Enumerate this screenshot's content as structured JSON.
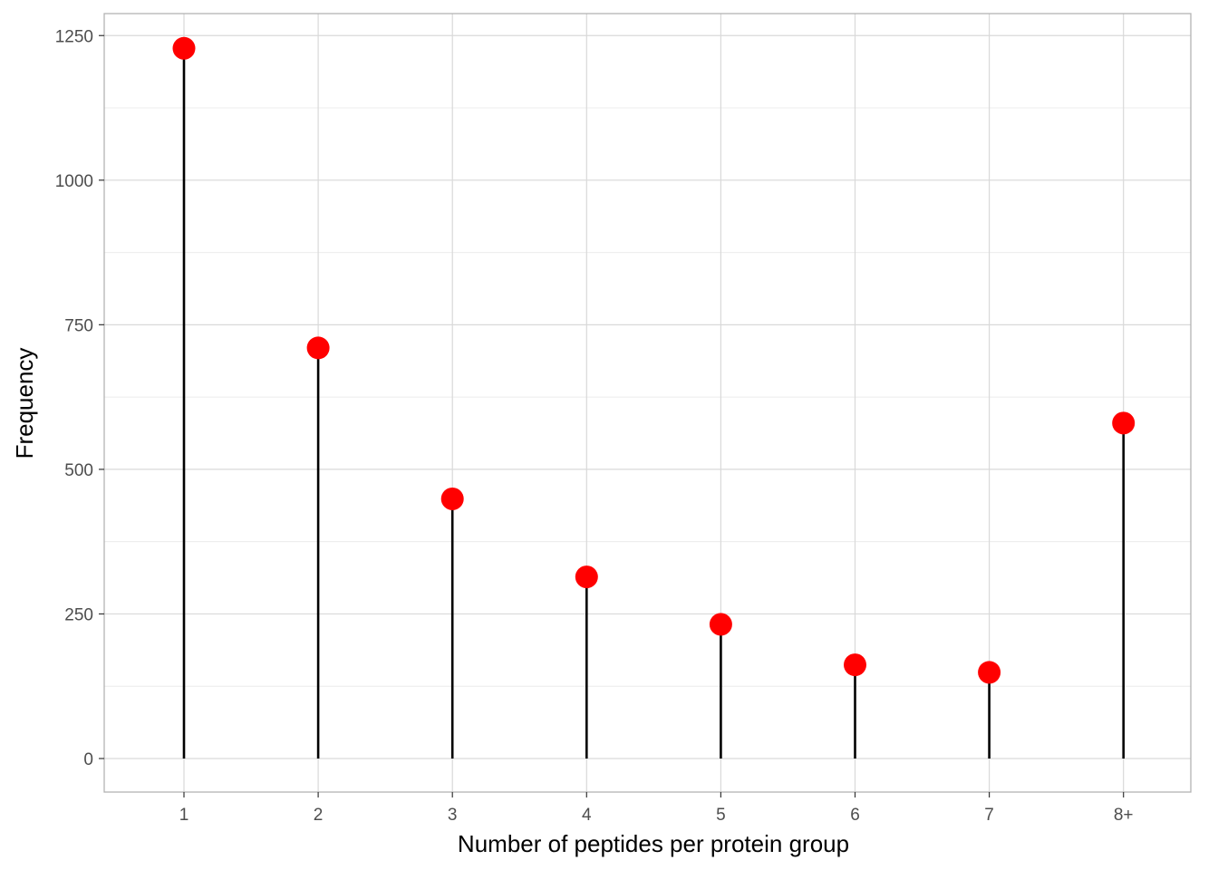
{
  "chart_data": {
    "type": "lollipop",
    "categories": [
      "1",
      "2",
      "3",
      "4",
      "5",
      "6",
      "7",
      "8+"
    ],
    "values": [
      1228,
      710,
      449,
      314,
      232,
      162,
      149,
      580
    ],
    "xlabel": "Number of peptides per protein group",
    "ylabel": "Frequency",
    "ylim": [
      -58,
      1288
    ],
    "yticks": [
      0,
      250,
      500,
      750,
      1000,
      1250
    ],
    "yticklabels": [
      "0",
      "250",
      "500",
      "750",
      "1000",
      "1250"
    ],
    "grid": true,
    "colors": {
      "point": "#ff0000",
      "stem": "#000000",
      "grid_major": "#d9d9d9",
      "grid_minor": "#ececec",
      "panel_border": "#b3b3b3"
    }
  }
}
